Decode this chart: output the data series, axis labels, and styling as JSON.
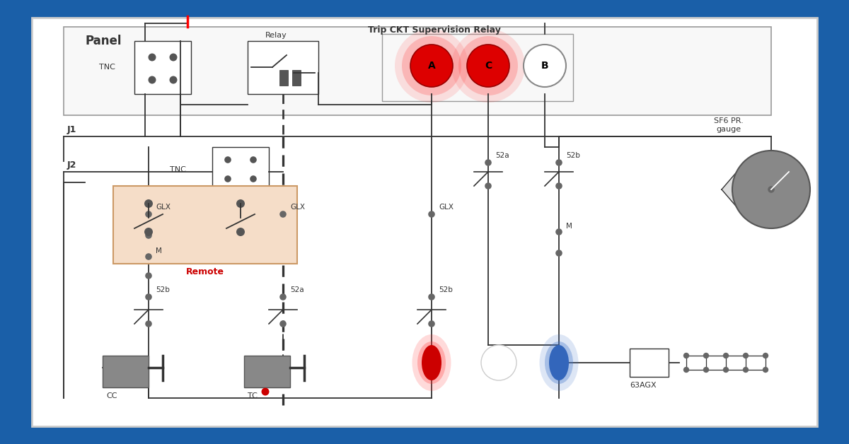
{
  "bg_outer": "#1a5fa8",
  "bg_inner": "#ffffff",
  "line_color": "#333333",
  "title_panel": "Panel",
  "title_trip": "Trip CKT Supervision Relay",
  "label_relay": "Relay",
  "label_TNC1": "TNC",
  "label_TNC2": "TNC",
  "label_J1": "J1",
  "label_J2": "J2",
  "label_GLX1": "GLX",
  "label_GLX2": "GLX",
  "label_GLX3": "GLX",
  "label_M1": "M",
  "label_M2": "M",
  "label_52a1": "52a",
  "label_52b1": "52b",
  "label_52b2": "52b",
  "label_52a2": "52a",
  "label_52b3": "52b",
  "label_remote": "Remote",
  "label_CC": "CC",
  "label_TC": "TC",
  "label_63AGX": "63AGX",
  "label_SF6": "SF6 PR.\ngauge",
  "label_A": "A",
  "label_C": "C",
  "label_B": "B",
  "circle_A_color": "#dd0000",
  "circle_C_color": "#dd0000",
  "circle_B_color": "#ffffff",
  "remote_box_color": "#f5ddc8",
  "red_label_color": "#cc0000",
  "gauge_color": "#888888"
}
